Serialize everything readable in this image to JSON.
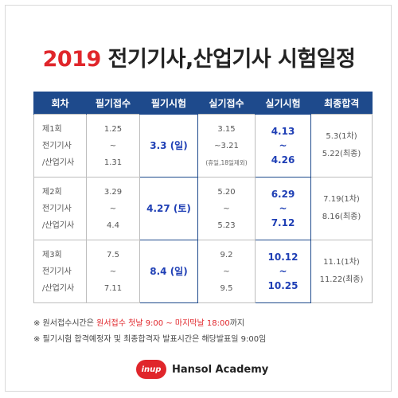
{
  "title": {
    "year": "2019",
    "rest": " 전기기사,산업기사 시험일정"
  },
  "table": {
    "headers": [
      "회차",
      "필기접수",
      "필기시험",
      "실기접수",
      "실기시험",
      "최종합격"
    ],
    "rows": [
      {
        "round": [
          "제1회",
          "전기기사",
          "/산업기사"
        ],
        "written_apply": [
          "1.25",
          "~",
          "1.31"
        ],
        "written_exam": "3.3 (일)",
        "practical_apply": [
          "3.15",
          "~3.21"
        ],
        "practical_apply_note": "(휴일,18일제외)",
        "practical_exam": [
          "4.13",
          "~",
          "4.26"
        ],
        "final": [
          "5.3(1차)",
          "5.22(최종)"
        ]
      },
      {
        "round": [
          "제2회",
          "전기기사",
          "/산업기사"
        ],
        "written_apply": [
          "3.29",
          "~",
          "4.4"
        ],
        "written_exam": "4.27 (토)",
        "practical_apply": [
          "5.20",
          "~",
          "5.23"
        ],
        "practical_exam": [
          "6.29",
          "~",
          "7.12"
        ],
        "final": [
          "7.19(1차)",
          "8.16(최종)"
        ]
      },
      {
        "round": [
          "제3회",
          "전기기사",
          "/산업기사"
        ],
        "written_apply": [
          "7.5",
          "~",
          "7.11"
        ],
        "written_exam": "8.4 (일)",
        "practical_apply": [
          "9.2",
          "~",
          "9.5"
        ],
        "practical_exam": [
          "10.12",
          "~",
          "10.25"
        ],
        "final": [
          "11.1(1차)",
          "11.22(최종)"
        ]
      }
    ]
  },
  "notes": {
    "line1_prefix": "※ 원서접수시간은 ",
    "line1_highlight": "원서접수 첫날 9:00 ~ 마지막날 18:00",
    "line1_suffix": "까지",
    "line2": "※ 필기시험 합격예정자 및 최종합격자 발표시간은 해당발표일 9:00임"
  },
  "brand": {
    "logo_text": "inup",
    "name": "Hansol Academy"
  },
  "colors": {
    "accent_red": "#e0262b",
    "header_blue": "#1e4a8c",
    "date_blue": "#1f3fb5"
  }
}
